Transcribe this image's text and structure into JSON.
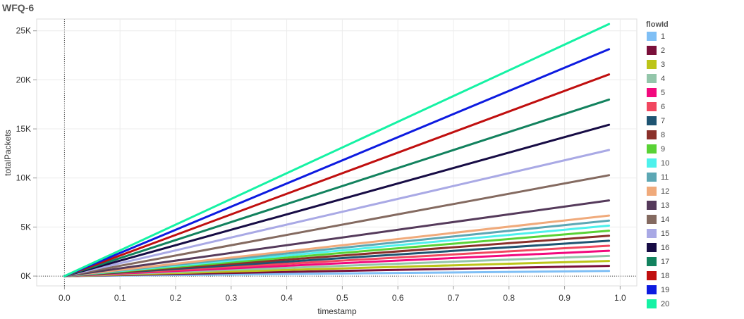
{
  "title": "WFQ-6",
  "chart_data": {
    "type": "line",
    "title": "WFQ-6",
    "xlabel": "timestamp",
    "ylabel": "totalPackets",
    "xlim": [
      -0.05,
      1.03
    ],
    "ylim": [
      -1000,
      26200
    ],
    "x_ticks": [
      0.0,
      0.1,
      0.2,
      0.3,
      0.4,
      0.5,
      0.6,
      0.7,
      0.8,
      0.9,
      1.0
    ],
    "x_tick_labels": [
      "0.0",
      "0.1",
      "0.2",
      "0.3",
      "0.4",
      "0.5",
      "0.6",
      "0.7",
      "0.8",
      "0.9",
      "1.0"
    ],
    "y_ticks": [
      0,
      5000,
      10000,
      15000,
      20000,
      25000
    ],
    "y_tick_labels": [
      "0K",
      "5K",
      "10K",
      "15K",
      "20K",
      "25K"
    ],
    "grid": true,
    "zero_reference_lines": true,
    "legend_title": "flowId",
    "legend_position": "right",
    "series": [
      {
        "name": "1",
        "color": "#7FBFF5",
        "x": [
          0,
          0.98
        ],
        "y": [
          0,
          520
        ]
      },
      {
        "name": "2",
        "color": "#7A0F3A",
        "x": [
          0,
          0.98
        ],
        "y": [
          0,
          1040
        ]
      },
      {
        "name": "3",
        "color": "#BCC418",
        "x": [
          0,
          0.98
        ],
        "y": [
          0,
          1540
        ]
      },
      {
        "name": "4",
        "color": "#93C6AA",
        "x": [
          0,
          0.98
        ],
        "y": [
          0,
          2060
        ]
      },
      {
        "name": "5",
        "color": "#F2097D",
        "x": [
          0,
          0.98
        ],
        "y": [
          0,
          2580
        ]
      },
      {
        "name": "6",
        "color": "#F1475F",
        "x": [
          0,
          0.98
        ],
        "y": [
          0,
          3090
        ]
      },
      {
        "name": "7",
        "color": "#1E5472",
        "x": [
          0,
          0.98
        ],
        "y": [
          0,
          3600
        ]
      },
      {
        "name": "8",
        "color": "#8A302A",
        "x": [
          0,
          0.98
        ],
        "y": [
          0,
          4110
        ]
      },
      {
        "name": "9",
        "color": "#59D235",
        "x": [
          0,
          0.98
        ],
        "y": [
          0,
          4630
        ]
      },
      {
        "name": "10",
        "color": "#4DF1EC",
        "x": [
          0,
          0.98
        ],
        "y": [
          0,
          5140
        ]
      },
      {
        "name": "11",
        "color": "#5CA7B4",
        "x": [
          0,
          0.98
        ],
        "y": [
          0,
          5650
        ]
      },
      {
        "name": "12",
        "color": "#F0AA7B",
        "x": [
          0,
          0.98
        ],
        "y": [
          0,
          6170
        ]
      },
      {
        "name": "13",
        "color": "#553A5B",
        "x": [
          0,
          0.98
        ],
        "y": [
          0,
          7710
        ]
      },
      {
        "name": "14",
        "color": "#846A60",
        "x": [
          0,
          0.98
        ],
        "y": [
          0,
          10280
        ]
      },
      {
        "name": "15",
        "color": "#A9A9E5",
        "x": [
          0,
          0.98
        ],
        "y": [
          0,
          12850
        ]
      },
      {
        "name": "16",
        "color": "#170C45",
        "x": [
          0,
          0.98
        ],
        "y": [
          0,
          15420
        ]
      },
      {
        "name": "17",
        "color": "#12825E",
        "x": [
          0,
          0.98
        ],
        "y": [
          0,
          17990
        ]
      },
      {
        "name": "18",
        "color": "#C00F0F",
        "x": [
          0,
          0.98
        ],
        "y": [
          0,
          20550
        ]
      },
      {
        "name": "19",
        "color": "#0D1BE0",
        "x": [
          0,
          0.98
        ],
        "y": [
          0,
          23120
        ]
      },
      {
        "name": "20",
        "color": "#15F2A4",
        "x": [
          0,
          0.98
        ],
        "y": [
          0,
          25690
        ]
      }
    ]
  }
}
